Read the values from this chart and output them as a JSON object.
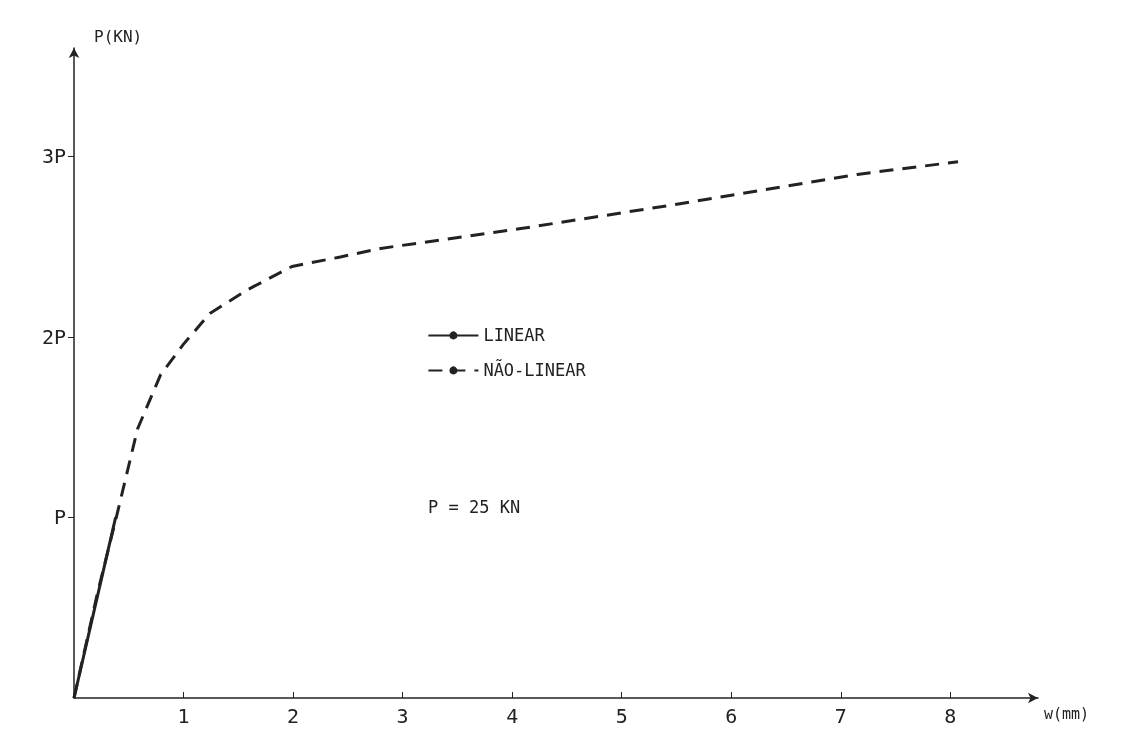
{
  "chart_data": {
    "type": "line",
    "xlabel": "w(mm)",
    "ylabel": "P(KN)",
    "xlim": [
      0,
      8.8
    ],
    "xticks": [
      1,
      2,
      3,
      4,
      5,
      6,
      7,
      8
    ],
    "ylim": [
      0,
      3.6
    ],
    "yticks": [
      {
        "value": 1,
        "label": "P"
      },
      {
        "value": 2,
        "label": "2P"
      },
      {
        "value": 3,
        "label": "3P"
      }
    ],
    "grid": false,
    "legend": "center",
    "marker": "none",
    "annotations": [
      "P = 25 KN"
    ],
    "series": [
      {
        "name": "LINEAR",
        "color": "#222222",
        "line_style": "solid",
        "x": [
          0,
          0.38
        ],
        "values": [
          0,
          1
        ]
      },
      {
        "name": "NÃO-LINEAR",
        "color": "#222222",
        "line_style": "dashed",
        "x": [
          0,
          0.21,
          0.39,
          0.58,
          0.79,
          1.0,
          1.24,
          1.58,
          1.99,
          2.41,
          2.8,
          4.08,
          5.56,
          7.15,
          8.07
        ],
        "values": [
          0,
          0.57,
          1.01,
          1.49,
          1.79,
          1.96,
          2.13,
          2.26,
          2.39,
          2.44,
          2.49,
          2.6,
          2.74,
          2.9,
          2.97
        ]
      }
    ]
  }
}
